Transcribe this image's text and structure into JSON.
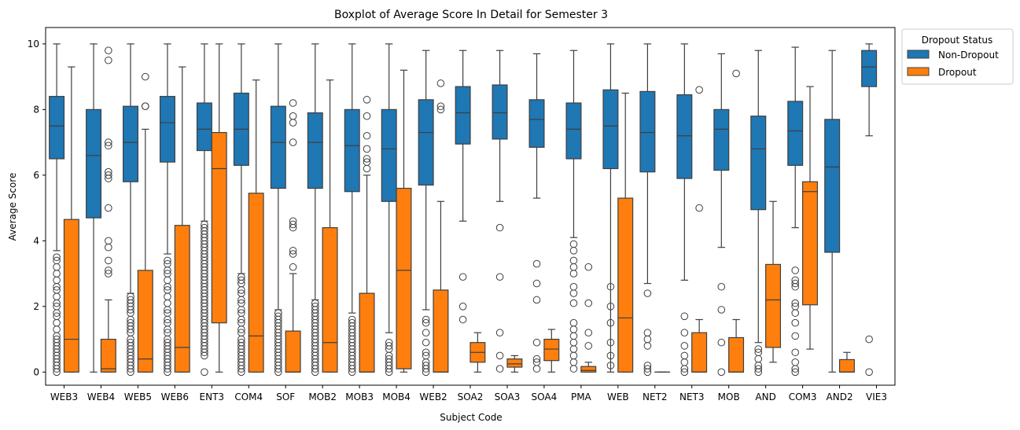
{
  "chart_data": {
    "type": "boxplot",
    "title": "Boxplot of Average Score In Detail for Semester 3",
    "xlabel": "Subject Code",
    "ylabel": "Average Score",
    "ylim": [
      -0.4,
      10.5
    ],
    "yticks": [
      0,
      2,
      4,
      6,
      8,
      10
    ],
    "grid": false,
    "categories": [
      "WEB3",
      "WEB4",
      "WEB5",
      "WEB6",
      "ENT3",
      "COM4",
      "SOF",
      "MOB2",
      "MOB3",
      "MOB4",
      "WEB2",
      "SOA2",
      "SOA3",
      "SOA4",
      "PMA",
      "WEB",
      "NET2",
      "NET3",
      "MOB",
      "AND",
      "COM3",
      "AND2",
      "VIE3"
    ],
    "legend": {
      "title": "Dropout Status",
      "position": "upper-right-outside"
    },
    "series": [
      {
        "name": "Non-Dropout",
        "color": "#1f77b4",
        "boxes": [
          {
            "min": 3.7,
            "q1": 6.5,
            "median": 7.5,
            "q3": 8.4,
            "max": 10.0,
            "outliers": [
              3.5,
              3.4,
              3.2,
              3.0,
              2.8,
              2.6,
              2.5,
              2.3,
              2.1,
              2.0,
              1.8,
              1.7,
              1.5,
              1.3,
              1.1,
              1.0,
              0.9,
              0.8,
              0.7,
              0.6,
              0.5,
              0.4,
              0.3,
              0.2,
              0.1,
              0.0
            ]
          },
          {
            "min": 0.0,
            "q1": 4.7,
            "median": 6.6,
            "q3": 8.0,
            "max": 10.0,
            "outliers": []
          },
          {
            "min": 2.4,
            "q1": 5.8,
            "median": 7.0,
            "q3": 8.1,
            "max": 10.0,
            "outliers": [
              2.3,
              2.2,
              2.1,
              2.0,
              1.9,
              1.8,
              1.6,
              1.5,
              1.4,
              1.3,
              1.2,
              1.0,
              0.9,
              0.8,
              0.7,
              0.6,
              0.5,
              0.4,
              0.3,
              0.2,
              0.1,
              0.0
            ]
          },
          {
            "min": 3.6,
            "q1": 6.4,
            "median": 7.6,
            "q3": 8.4,
            "max": 10.0,
            "outliers": [
              3.4,
              3.3,
              3.1,
              3.0,
              2.8,
              2.6,
              2.5,
              2.3,
              2.1,
              1.9,
              1.8,
              1.6,
              1.5,
              1.3,
              1.2,
              1.0,
              0.9,
              0.8,
              0.7,
              0.6,
              0.5,
              0.4,
              0.3,
              0.2,
              0.1,
              0.0
            ]
          },
          {
            "min": 4.6,
            "q1": 6.75,
            "median": 7.4,
            "q3": 8.2,
            "max": 10.0,
            "outliers": [
              4.5,
              4.4,
              4.3,
              4.2,
              4.1,
              4.0,
              3.9,
              3.8,
              3.7,
              3.6,
              3.5,
              3.4,
              3.3,
              3.2,
              3.1,
              3.0,
              2.9,
              2.8,
              2.7,
              2.6,
              2.5,
              2.4,
              2.3,
              2.2,
              2.1,
              2.0,
              1.9,
              1.8,
              1.7,
              1.6,
              1.5,
              1.4,
              1.3,
              1.2,
              1.1,
              1.0,
              0.9,
              0.8,
              0.7,
              0.6,
              0.5,
              0.0
            ]
          },
          {
            "min": 3.0,
            "q1": 6.3,
            "median": 7.4,
            "q3": 8.5,
            "max": 10.0,
            "outliers": [
              2.9,
              2.8,
              2.7,
              2.5,
              2.4,
              2.2,
              2.1,
              1.9,
              1.8,
              1.6,
              1.5,
              1.3,
              1.2,
              1.0,
              0.9,
              0.8,
              0.7,
              0.6,
              0.5,
              0.4,
              0.3,
              0.2,
              0.1,
              0.0
            ]
          },
          {
            "min": 1.9,
            "q1": 5.6,
            "median": 7.0,
            "q3": 8.1,
            "max": 10.0,
            "outliers": [
              1.8,
              1.7,
              1.6,
              1.5,
              1.4,
              1.3,
              1.2,
              1.1,
              1.0,
              0.9,
              0.8,
              0.7,
              0.6,
              0.5,
              0.4,
              0.3,
              0.2,
              0.1,
              0.0
            ]
          },
          {
            "min": 2.2,
            "q1": 5.6,
            "median": 7.0,
            "q3": 7.9,
            "max": 10.0,
            "outliers": [
              2.1,
              2.0,
              1.9,
              1.8,
              1.7,
              1.6,
              1.5,
              1.4,
              1.3,
              1.2,
              1.1,
              1.0,
              0.9,
              0.8,
              0.7,
              0.6,
              0.5,
              0.4,
              0.3,
              0.2,
              0.1,
              0.0
            ]
          },
          {
            "min": 1.8,
            "q1": 5.5,
            "median": 6.9,
            "q3": 8.0,
            "max": 10.0,
            "outliers": [
              1.6,
              1.5,
              1.4,
              1.3,
              1.2,
              1.1,
              1.0,
              0.9,
              0.8,
              0.7,
              0.6,
              0.5,
              0.4,
              0.3,
              0.2,
              0.1,
              0.0
            ]
          },
          {
            "min": 1.2,
            "q1": 5.2,
            "median": 6.8,
            "q3": 8.0,
            "max": 10.0,
            "outliers": [
              0.9,
              0.8,
              0.7,
              0.5,
              0.4,
              0.3,
              0.2,
              0.1,
              0.0
            ]
          },
          {
            "min": 1.9,
            "q1": 5.7,
            "median": 7.3,
            "q3": 8.3,
            "max": 9.8,
            "outliers": [
              1.6,
              1.5,
              1.2,
              0.9,
              0.6,
              0.5,
              0.3,
              0.2,
              0.1,
              0.0
            ]
          },
          {
            "min": 4.6,
            "q1": 6.95,
            "median": 7.9,
            "q3": 8.7,
            "max": 9.8,
            "outliers": [
              2.9,
              2.0,
              1.6
            ]
          },
          {
            "min": 5.2,
            "q1": 7.1,
            "median": 7.9,
            "q3": 8.75,
            "max": 9.8,
            "outliers": [
              4.4,
              2.9,
              1.2,
              0.5,
              0.1
            ]
          },
          {
            "min": 5.3,
            "q1": 6.85,
            "median": 7.7,
            "q3": 8.3,
            "max": 9.7,
            "outliers": [
              3.3,
              2.7,
              2.2,
              0.9,
              0.4,
              0.3,
              0.1
            ]
          },
          {
            "min": 4.1,
            "q1": 6.5,
            "median": 7.4,
            "q3": 8.2,
            "max": 9.8,
            "outliers": [
              3.9,
              3.7,
              3.4,
              3.2,
              3.0,
              2.6,
              2.4,
              2.1,
              1.5,
              1.3,
              1.1,
              0.9,
              0.7,
              0.5,
              0.3,
              0.1
            ]
          },
          {
            "min": 0.0,
            "q1": 6.2,
            "median": 7.5,
            "q3": 8.6,
            "max": 10.0,
            "outliers": [
              2.6,
              2.0,
              1.5,
              0.9,
              0.5,
              0.2
            ]
          },
          {
            "min": 2.7,
            "q1": 6.1,
            "median": 7.3,
            "q3": 8.55,
            "max": 10.0,
            "outliers": [
              2.4,
              1.2,
              1.0,
              0.8,
              0.2,
              0.1,
              0.0
            ]
          },
          {
            "min": 2.8,
            "q1": 5.9,
            "median": 7.2,
            "q3": 8.45,
            "max": 10.0,
            "outliers": [
              1.7,
              1.2,
              0.8,
              0.5,
              0.3,
              0.1,
              0.0
            ]
          },
          {
            "min": 3.8,
            "q1": 6.15,
            "median": 7.4,
            "q3": 8.0,
            "max": 9.7,
            "outliers": [
              2.6,
              1.9,
              0.9,
              0.0
            ]
          },
          {
            "min": 0.9,
            "q1": 4.95,
            "median": 6.8,
            "q3": 7.8,
            "max": 9.8,
            "outliers": [
              0.7,
              0.6,
              0.4,
              0.2,
              0.1,
              0.0
            ]
          },
          {
            "min": 4.4,
            "q1": 6.3,
            "median": 7.35,
            "q3": 8.25,
            "max": 9.9,
            "outliers": [
              3.1,
              2.8,
              2.7,
              2.6,
              2.1,
              2.0,
              1.8,
              1.5,
              1.1,
              0.6,
              0.3,
              0.1,
              0.0
            ]
          },
          {
            "min": 0.0,
            "q1": 3.65,
            "median": 6.25,
            "q3": 7.7,
            "max": 9.8,
            "outliers": []
          },
          {
            "min": 7.2,
            "q1": 8.7,
            "median": 9.3,
            "q3": 9.8,
            "max": 10.0,
            "outliers": [
              1.0,
              0.0
            ]
          }
        ]
      },
      {
        "name": "Dropout",
        "color": "#ff7f0e",
        "boxes": [
          {
            "min": 0.0,
            "q1": 0.0,
            "median": 1.0,
            "q3": 4.65,
            "max": 9.3,
            "outliers": []
          },
          {
            "min": 0.0,
            "q1": 0.0,
            "median": 0.1,
            "q3": 1.0,
            "max": 2.2,
            "outliers": [
              3.0,
              3.1,
              3.4,
              3.8,
              4.0,
              5.0,
              5.9,
              6.0,
              6.1,
              6.9,
              7.0,
              9.5,
              9.8
            ]
          },
          {
            "min": 0.0,
            "q1": 0.0,
            "median": 0.4,
            "q3": 3.1,
            "max": 7.4,
            "outliers": [
              8.1,
              8.1,
              9.0
            ]
          },
          {
            "min": 0.0,
            "q1": 0.0,
            "median": 0.75,
            "q3": 4.47,
            "max": 9.3,
            "outliers": []
          },
          {
            "min": 0.0,
            "q1": 1.5,
            "median": 6.2,
            "q3": 7.3,
            "max": 10.0,
            "outliers": []
          },
          {
            "min": 0.0,
            "q1": 0.0,
            "median": 1.1,
            "q3": 5.45,
            "max": 8.9,
            "outliers": []
          },
          {
            "min": 0.0,
            "q1": 0.0,
            "median": 0.0,
            "q3": 1.25,
            "max": 3.0,
            "outliers": [
              3.2,
              3.6,
              3.7,
              4.4,
              4.5,
              4.6,
              7.0,
              7.6,
              7.8,
              8.2
            ]
          },
          {
            "min": 0.0,
            "q1": 0.0,
            "median": 0.9,
            "q3": 4.4,
            "max": 8.9,
            "outliers": []
          },
          {
            "min": 0.0,
            "q1": 0.0,
            "median": 0.0,
            "q3": 2.4,
            "max": 6.0,
            "outliers": [
              6.2,
              6.4,
              6.5,
              6.8,
              7.2,
              7.8,
              8.3
            ]
          },
          {
            "min": 0.0,
            "q1": 0.1,
            "median": 3.1,
            "q3": 5.6,
            "max": 9.2,
            "outliers": []
          },
          {
            "min": 0.0,
            "q1": 0.0,
            "median": 0.0,
            "q3": 2.5,
            "max": 5.2,
            "outliers": [
              8.0,
              8.1,
              8.8
            ]
          },
          {
            "min": 0.0,
            "q1": 0.3,
            "median": 0.6,
            "q3": 0.9,
            "max": 1.2,
            "outliers": []
          },
          {
            "min": 0.0,
            "q1": 0.15,
            "median": 0.25,
            "q3": 0.4,
            "max": 0.5,
            "outliers": []
          },
          {
            "min": 0.0,
            "q1": 0.35,
            "median": 0.7,
            "q3": 1.0,
            "max": 1.3,
            "outliers": []
          },
          {
            "min": 0.0,
            "q1": 0.0,
            "median": 0.05,
            "q3": 0.17,
            "max": 0.3,
            "outliers": [
              0.8,
              1.2,
              2.1,
              3.2
            ]
          },
          {
            "min": 0.0,
            "q1": 0.0,
            "median": 1.65,
            "q3": 5.3,
            "max": 8.5,
            "outliers": []
          },
          {
            "min": 0.0,
            "q1": 0.0,
            "median": 0.0,
            "q3": 0.0,
            "max": 0.0,
            "outliers": []
          },
          {
            "min": 0.0,
            "q1": 0.0,
            "median": 0.0,
            "q3": 1.2,
            "max": 1.6,
            "outliers": [
              5.0,
              8.6
            ]
          },
          {
            "min": 0.0,
            "q1": 0.0,
            "median": 0.0,
            "q3": 1.05,
            "max": 1.6,
            "outliers": [
              9.1
            ]
          },
          {
            "min": 0.3,
            "q1": 0.75,
            "median": 2.2,
            "q3": 3.28,
            "max": 5.2,
            "outliers": []
          },
          {
            "min": 0.7,
            "q1": 2.05,
            "median": 5.5,
            "q3": 5.8,
            "max": 8.7,
            "outliers": []
          },
          {
            "min": 0.0,
            "q1": 0.0,
            "median": 0.0,
            "q3": 0.38,
            "max": 0.6,
            "outliers": []
          },
          null
        ]
      }
    ]
  }
}
